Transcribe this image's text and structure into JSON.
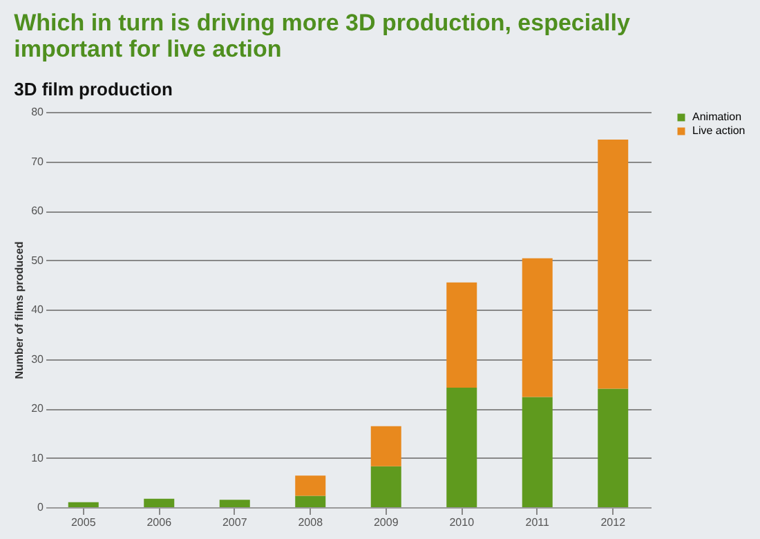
{
  "chart_data": {
    "type": "bar",
    "title": "Which in turn is driving more 3D production, especially important for live action",
    "subtitle": "3D film production",
    "ylabel": "Number of films produced",
    "categories": [
      "2005",
      "2006",
      "2007",
      "2008",
      "2009",
      "2010",
      "2011",
      "2012"
    ],
    "series": [
      {
        "name": "Animation",
        "color": "#5f9a1e",
        "values": [
          1,
          1.7,
          1.5,
          2.3,
          8.3,
          24.2,
          22.3,
          24
        ]
      },
      {
        "name": "Live action",
        "color": "#e8891e",
        "values": [
          0,
          0,
          0,
          4.1,
          8.1,
          21.3,
          28.1,
          50.4
        ]
      }
    ],
    "stacked": true,
    "ylim": [
      0,
      80
    ],
    "yticks": [
      0,
      10,
      20,
      30,
      40,
      50,
      60,
      70,
      80
    ],
    "grid": "y",
    "legend": "right"
  }
}
